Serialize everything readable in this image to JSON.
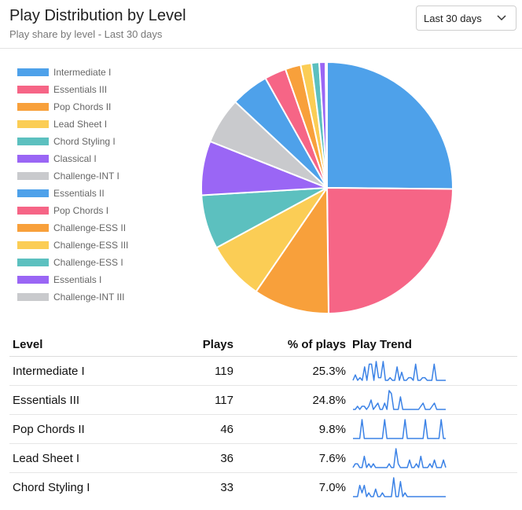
{
  "header": {
    "title": "Play Distribution by Level",
    "subtitle": "Play share by level - Last 30 days",
    "range_select": {
      "selected": "Last 30 days"
    }
  },
  "colors": {
    "blue": "#4ea1ea",
    "pink": "#f66586",
    "orange": "#f8a03b",
    "yellow": "#fbcd55",
    "teal": "#5cc0bf",
    "purple": "#9a66f5",
    "gray": "#c9cacd",
    "spark": "#3b82e6"
  },
  "chart_data": {
    "type": "pie",
    "title": "",
    "legend_position": "left",
    "slices": [
      {
        "label": "Intermediate I",
        "value": 25.3,
        "color": "#4ea1ea"
      },
      {
        "label": "Essentials III",
        "value": 24.8,
        "color": "#f66586"
      },
      {
        "label": "Pop Chords II",
        "value": 9.8,
        "color": "#f8a03b"
      },
      {
        "label": "Lead Sheet I",
        "value": 7.6,
        "color": "#fbcd55"
      },
      {
        "label": "Chord Styling I",
        "value": 7.0,
        "color": "#5cc0bf"
      },
      {
        "label": "Classical I",
        "value": 7.0,
        "color": "#9a66f5"
      },
      {
        "label": "Challenge-INT I",
        "value": 6.0,
        "color": "#c9cacd"
      },
      {
        "label": "Essentials II",
        "value": 4.9,
        "color": "#4ea1ea"
      },
      {
        "label": "Pop Chords I",
        "value": 2.8,
        "color": "#f66586"
      },
      {
        "label": "Challenge-ESS II",
        "value": 2.0,
        "color": "#f8a03b"
      },
      {
        "label": "Challenge-ESS III",
        "value": 1.4,
        "color": "#fbcd55"
      },
      {
        "label": "Challenge-ESS I",
        "value": 1.0,
        "color": "#5cc0bf"
      },
      {
        "label": "Essentials I",
        "value": 0.8,
        "color": "#9a66f5"
      },
      {
        "label": "Challenge-INT III",
        "value": 0.2,
        "color": "#c9cacd"
      }
    ]
  },
  "table": {
    "headers": {
      "level": "Level",
      "plays": "Plays",
      "pct": "% of plays",
      "trend": "Play Trend"
    },
    "rows": [
      {
        "level": "Intermediate I",
        "plays": "119",
        "pct": "25.3%",
        "trend": [
          0,
          2,
          0,
          1,
          0,
          5,
          0,
          6,
          6,
          0,
          7,
          1,
          1,
          7,
          0,
          0,
          1,
          0,
          0,
          5,
          0,
          3,
          0,
          0,
          1,
          1,
          0,
          6,
          0,
          0,
          1,
          1,
          0,
          0,
          0,
          6,
          0,
          0,
          0,
          0,
          0
        ]
      },
      {
        "level": "Essentials III",
        "plays": "117",
        "pct": "24.8%",
        "trend": [
          0,
          0,
          1,
          0,
          1,
          1,
          0,
          1,
          3,
          0,
          1,
          2,
          0,
          0,
          2,
          0,
          6,
          5,
          0,
          0,
          0,
          4,
          0,
          0,
          0,
          0,
          0,
          0,
          0,
          0,
          1,
          2,
          0,
          0,
          0,
          1,
          2,
          0,
          0,
          0,
          0,
          0
        ]
      },
      {
        "level": "Pop Chords II",
        "plays": "46",
        "pct": "9.8%",
        "trend": [
          0,
          0,
          0,
          0,
          1,
          0,
          0,
          0,
          0,
          0,
          0,
          0,
          0,
          0,
          1,
          0,
          0,
          0,
          0,
          0,
          0,
          0,
          0,
          1,
          0,
          0,
          0,
          0,
          0,
          0,
          0,
          0,
          1,
          0,
          0,
          0,
          0,
          0,
          0,
          1,
          0,
          0
        ]
      },
      {
        "level": "Lead Sheet I",
        "plays": "36",
        "pct": "7.6%",
        "trend": [
          0,
          1,
          1,
          0,
          0,
          3,
          0,
          1,
          0,
          1,
          0,
          0,
          0,
          0,
          0,
          0,
          1,
          0,
          0,
          5,
          1,
          0,
          0,
          0,
          0,
          2,
          0,
          0,
          1,
          0,
          3,
          0,
          0,
          0,
          1,
          0,
          2,
          0,
          0,
          0,
          2,
          0
        ]
      },
      {
        "level": "Chord Styling I",
        "plays": "33",
        "pct": "7.0%",
        "trend": [
          0,
          0,
          0,
          3,
          1,
          3,
          0,
          1,
          0,
          0,
          2,
          0,
          0,
          1,
          0,
          0,
          0,
          0,
          5,
          0,
          0,
          4,
          0,
          1,
          0,
          0,
          0,
          0,
          0,
          0,
          0,
          0,
          0,
          0,
          0,
          0,
          0,
          0,
          0,
          0,
          0,
          0
        ]
      }
    ]
  }
}
